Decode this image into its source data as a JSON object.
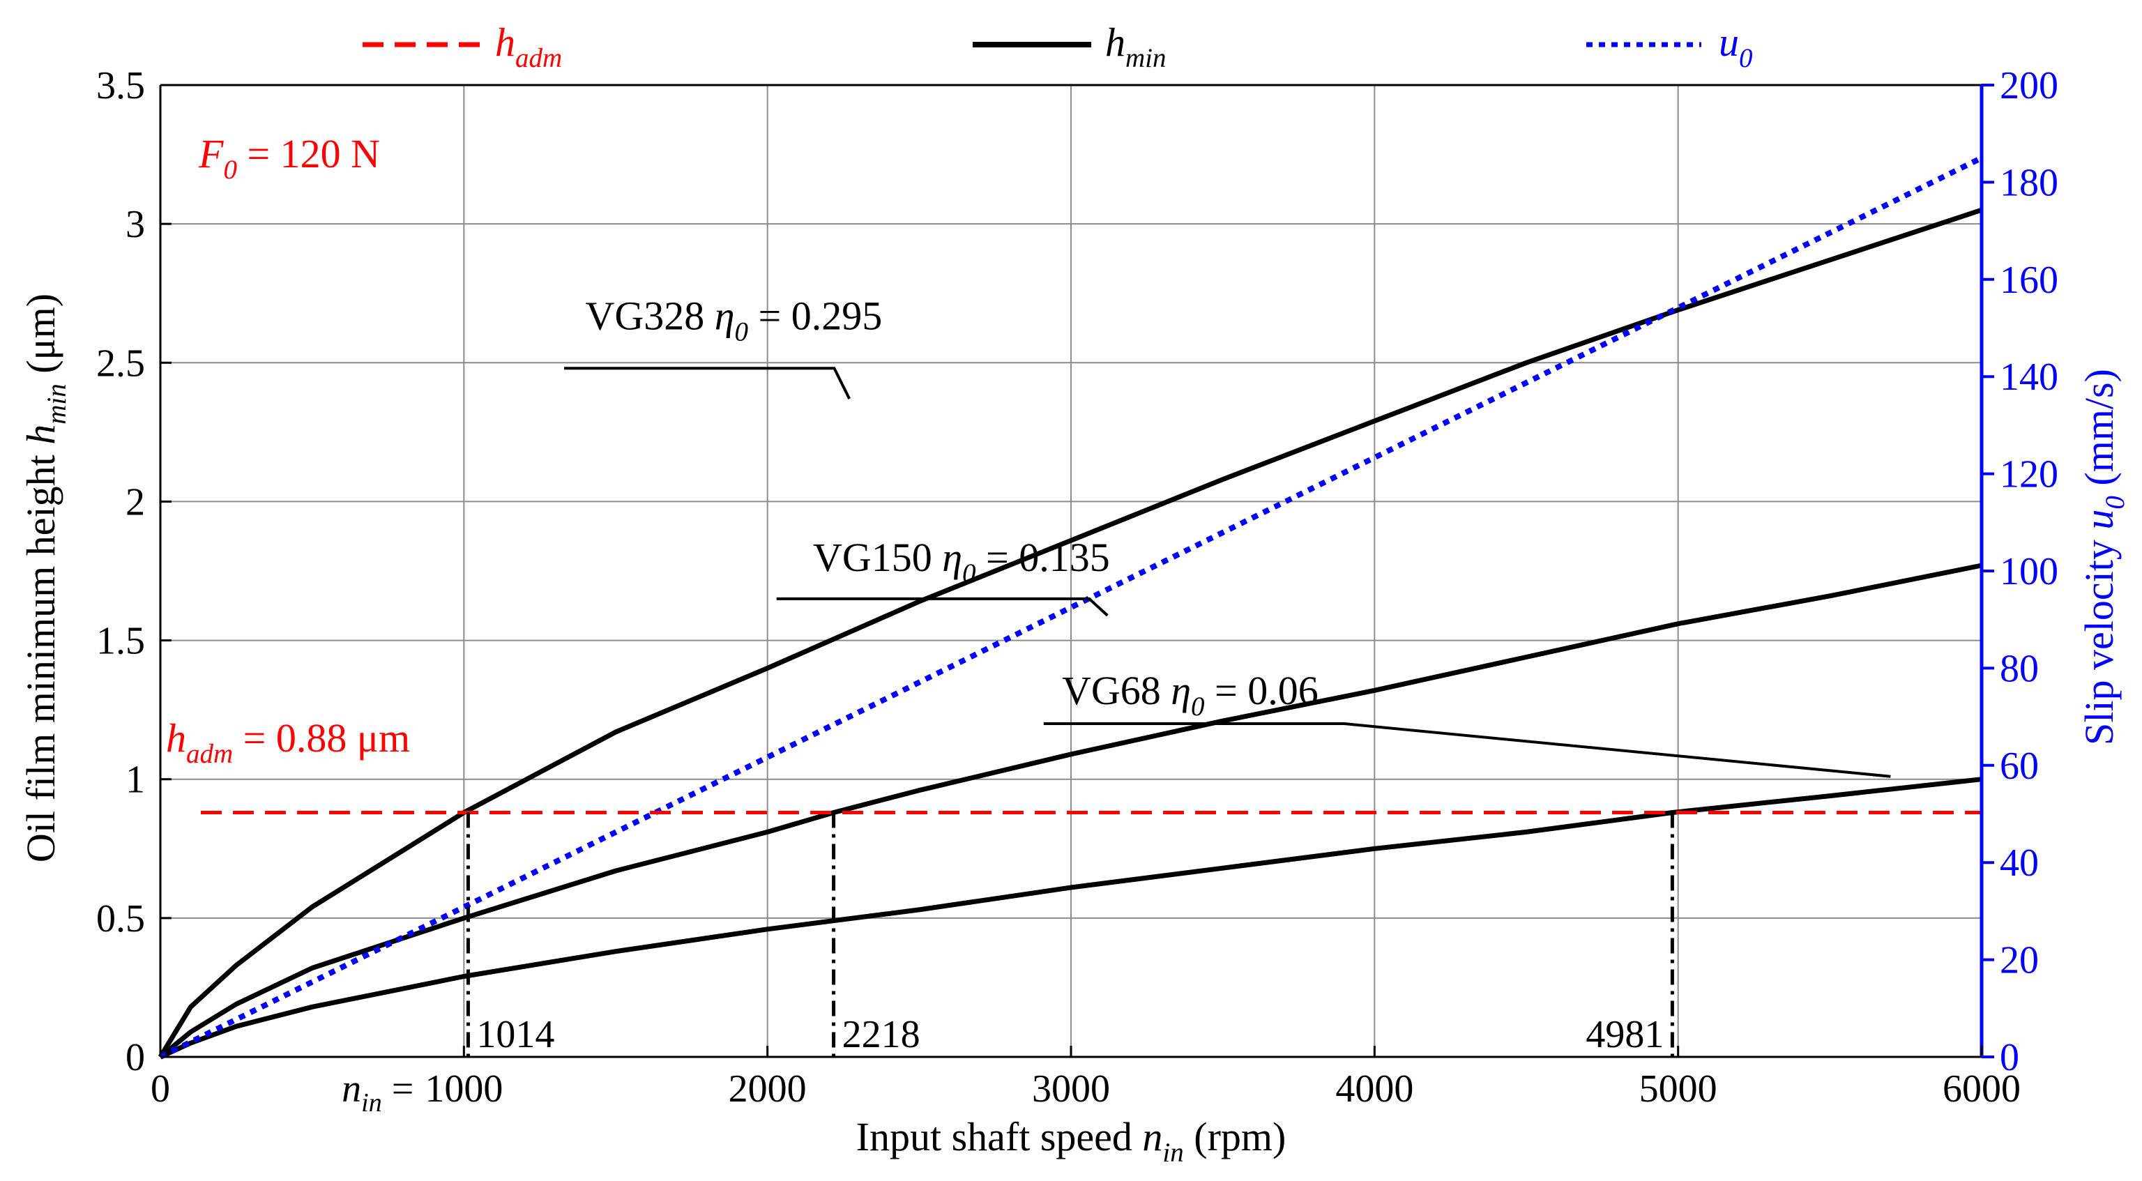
{
  "chart_data": {
    "type": "line",
    "xlabel": {
      "pre": "Input shaft speed ",
      "var": "n",
      "sub": "in",
      "post": " (rpm)"
    },
    "ylabel_left": {
      "pre": "Oil film minimum height ",
      "var": "h",
      "sub": "min",
      "post": " (μm)"
    },
    "ylabel_right": {
      "pre": "Slip velocity ",
      "var": "u",
      "sub": "0",
      "post": " (mm/s)"
    },
    "xlim": [
      0,
      6000
    ],
    "ylim_left": [
      0,
      3.5
    ],
    "ylim_right": [
      0,
      200
    ],
    "grid": true,
    "x_ticks": [
      {
        "v": 0,
        "label": "0"
      },
      {
        "v": 1000,
        "label": "1000",
        "prefix_var": "n",
        "prefix_sub": "in",
        "prefix_post": " = "
      },
      {
        "v": 2000,
        "label": "2000"
      },
      {
        "v": 3000,
        "label": "3000"
      },
      {
        "v": 4000,
        "label": "4000"
      },
      {
        "v": 5000,
        "label": "5000"
      },
      {
        "v": 6000,
        "label": "6000"
      }
    ],
    "y_left_ticks": [
      {
        "v": 0,
        "label": "0"
      },
      {
        "v": 0.5,
        "label": "0.5"
      },
      {
        "v": 1,
        "label": "1"
      },
      {
        "v": 1.5,
        "label": "1.5"
      },
      {
        "v": 2,
        "label": "2"
      },
      {
        "v": 2.5,
        "label": "2.5"
      },
      {
        "v": 3,
        "label": "3"
      },
      {
        "v": 3.5,
        "label": "3.5"
      }
    ],
    "y_right_ticks": [
      {
        "v": 0,
        "label": "0"
      },
      {
        "v": 20,
        "label": "20"
      },
      {
        "v": 40,
        "label": "40"
      },
      {
        "v": 60,
        "label": "60"
      },
      {
        "v": 80,
        "label": "80"
      },
      {
        "v": 100,
        "label": "100"
      },
      {
        "v": 120,
        "label": "120"
      },
      {
        "v": 140,
        "label": "140"
      },
      {
        "v": 160,
        "label": "160"
      },
      {
        "v": 180,
        "label": "180"
      },
      {
        "v": 200,
        "label": "200"
      }
    ],
    "legend": [
      {
        "var": "h",
        "sub": "adm",
        "style": "dashed",
        "color": "#ff0000"
      },
      {
        "var": "h",
        "sub": "min",
        "style": "solid",
        "color": "#000000"
      },
      {
        "var": "u",
        "sub": "0",
        "style": "dotted",
        "color": "#0000ff"
      }
    ],
    "legend_position": "top",
    "h_adm": {
      "value": 0.88,
      "var": "h",
      "sub": "adm",
      "text": " = 0.88 μm",
      "color": "#ff0000"
    },
    "load_label": {
      "var": "F",
      "sub": "0",
      "text": " = 120 N",
      "color": "#ff0000"
    },
    "series": [
      {
        "name": "VG328",
        "label_pre": "VG328 ",
        "label_var": "η",
        "label_sub": "0",
        "label_post": " = 0.295",
        "axis": "left",
        "x": [
          0,
          100,
          250,
          500,
          1000,
          1500,
          2000,
          2500,
          3000,
          3500,
          4000,
          4500,
          5000,
          5500,
          6000
        ],
        "y": [
          0,
          0.18,
          0.33,
          0.54,
          0.88,
          1.17,
          1.4,
          1.64,
          1.86,
          2.08,
          2.29,
          2.5,
          2.69,
          2.87,
          3.05
        ]
      },
      {
        "name": "VG150",
        "label_pre": "VG150 ",
        "label_var": "η",
        "label_sub": "0",
        "label_post": " = 0.135",
        "axis": "left",
        "x": [
          0,
          100,
          250,
          500,
          1000,
          1500,
          2000,
          2218,
          2500,
          3000,
          3500,
          4000,
          4500,
          5000,
          5500,
          6000
        ],
        "y": [
          0,
          0.09,
          0.19,
          0.32,
          0.5,
          0.67,
          0.81,
          0.88,
          0.96,
          1.09,
          1.21,
          1.32,
          1.44,
          1.56,
          1.66,
          1.77
        ]
      },
      {
        "name": "VG68",
        "label_pre": "VG68 ",
        "label_var": "η",
        "label_sub": "0",
        "label_post": " = 0.06",
        "axis": "left",
        "x": [
          0,
          100,
          250,
          500,
          1000,
          1500,
          2000,
          2500,
          3000,
          3500,
          4000,
          4500,
          4981,
          5500,
          6000
        ],
        "y": [
          0,
          0.05,
          0.11,
          0.18,
          0.29,
          0.38,
          0.46,
          0.53,
          0.61,
          0.68,
          0.75,
          0.81,
          0.88,
          0.94,
          1.0
        ]
      },
      {
        "name": "u0",
        "axis": "right",
        "x": [
          0,
          6000
        ],
        "y": [
          0,
          185
        ]
      }
    ],
    "intersections": [
      {
        "x": 1014,
        "label": "1014"
      },
      {
        "x": 2218,
        "label": "2218"
      },
      {
        "x": 4981,
        "label": "4981"
      }
    ]
  }
}
